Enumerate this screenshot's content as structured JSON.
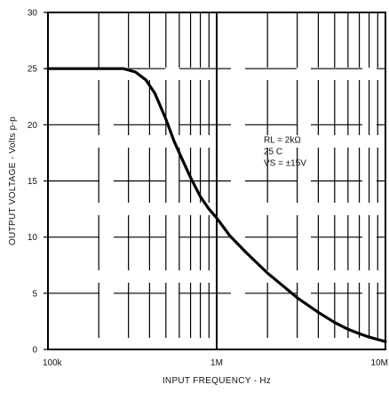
{
  "chart_data": {
    "type": "line",
    "xscale": "log",
    "xlabel": "INPUT FREQUENCY - Hz",
    "ylabel": "OUTPUT VOLTAGE - Volts p-p",
    "xlim": [
      100000,
      10000000
    ],
    "ylim": [
      0,
      30
    ],
    "x_ticks": [
      {
        "value": 100000,
        "label": "100k"
      },
      {
        "value": 1000000,
        "label": "1M"
      },
      {
        "value": 10000000,
        "label": "10M"
      }
    ],
    "y_ticks": [
      {
        "value": 0,
        "label": "0"
      },
      {
        "value": 5,
        "label": "5"
      },
      {
        "value": 10,
        "label": "10"
      },
      {
        "value": 15,
        "label": "15"
      },
      {
        "value": 20,
        "label": "20"
      },
      {
        "value": 25,
        "label": "25"
      },
      {
        "value": 30,
        "label": "30"
      }
    ],
    "grid": true,
    "annotations": [
      "RL = 2kΩ",
      "25 C",
      "VS = ±15V"
    ],
    "series": [
      {
        "x": [
          100000,
          200000,
          280000,
          330000,
          380000,
          430000,
          500000,
          560000,
          630000,
          700000,
          800000,
          900000,
          1000000,
          1200000,
          1500000,
          2000000,
          2500000,
          3000000,
          4000000,
          5000000,
          6000000,
          7000000,
          8000000,
          10000000
        ],
        "y": [
          25,
          25,
          25,
          24.7,
          24,
          22.8,
          20.5,
          18.5,
          16.8,
          15.3,
          13.6,
          12.5,
          11.7,
          10.1,
          8.6,
          6.8,
          5.6,
          4.6,
          3.3,
          2.4,
          1.8,
          1.4,
          1.1,
          0.7
        ]
      }
    ]
  }
}
